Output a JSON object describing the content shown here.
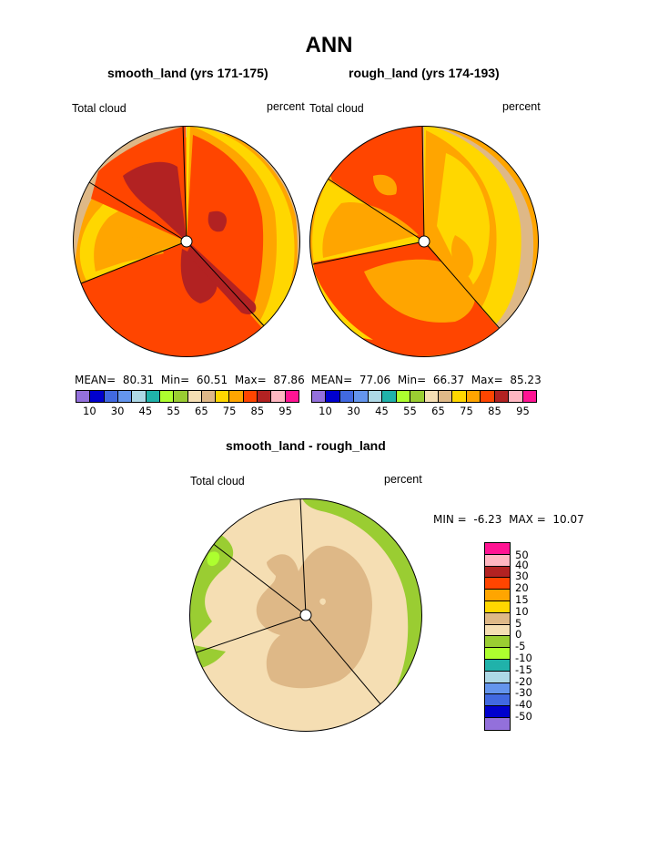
{
  "title": "ANN",
  "diff_title": "smooth_land - rough_land",
  "panels": [
    {
      "title": "smooth_land (yrs 171-175)",
      "left_label": "Total cloud",
      "right_label": "percent",
      "mean_label": "MEAN=",
      "mean": "80.31",
      "min_label": "Min=",
      "min": "60.51",
      "max_label": "Max=",
      "max": "87.86"
    },
    {
      "title": "rough_land (yrs 174-193)",
      "left_label": "Total cloud",
      "right_label": "percent",
      "mean_label": "MEAN=",
      "mean": "77.06",
      "min_label": "Min=",
      "min": "66.37",
      "max_label": "Max=",
      "max": "85.23"
    }
  ],
  "diff_panel": {
    "left_label": "Total cloud",
    "right_label": "percent",
    "min_label": "MIN =",
    "min": "-6.23",
    "max_label": "MAX =",
    "max": "10.07"
  },
  "chart_data": [
    {
      "type": "heatmap",
      "projection": "polar",
      "variable": "Total cloud",
      "units": "percent",
      "case": "smooth_land (yrs 171-175)",
      "mean": 80.31,
      "min": 60.51,
      "max": 87.86,
      "colorbar_ticks": [
        "10",
        "30",
        "45",
        "55",
        "65",
        "75",
        "85",
        "95"
      ],
      "colorbar_colors": [
        "#9370db",
        "#0000cd",
        "#4169e1",
        "#6495ed",
        "#add8e6",
        "#20b2aa",
        "#adff2f",
        "#9acd32",
        "#f5deb3",
        "#deb887",
        "#ffd700",
        "#ffa500",
        "#ff4500",
        "#b22222",
        "#ffb6c1",
        "#ff1493"
      ]
    },
    {
      "type": "heatmap",
      "projection": "polar",
      "variable": "Total cloud",
      "units": "percent",
      "case": "rough_land (yrs 174-193)",
      "mean": 77.06,
      "min": 66.37,
      "max": 85.23,
      "colorbar_ticks": [
        "10",
        "30",
        "45",
        "55",
        "65",
        "75",
        "85",
        "95"
      ],
      "colorbar_colors": [
        "#9370db",
        "#0000cd",
        "#4169e1",
        "#6495ed",
        "#add8e6",
        "#20b2aa",
        "#adff2f",
        "#9acd32",
        "#f5deb3",
        "#deb887",
        "#ffd700",
        "#ffa500",
        "#ff4500",
        "#b22222",
        "#ffb6c1",
        "#ff1493"
      ]
    },
    {
      "type": "heatmap",
      "projection": "polar",
      "variable": "Total cloud",
      "units": "percent",
      "case": "smooth_land - rough_land",
      "min": -6.23,
      "max": 10.07,
      "colorbar_ticks": [
        "50",
        "40",
        "30",
        "20",
        "15",
        "10",
        "5",
        "0",
        "-5",
        "-10",
        "-15",
        "-20",
        "-30",
        "-40",
        "-50"
      ],
      "colorbar_colors": [
        "#ff1493",
        "#ffb6c1",
        "#b22222",
        "#ff4500",
        "#ffa500",
        "#ffd700",
        "#deb887",
        "#f5deb3",
        "#9acd32",
        "#adff2f",
        "#20b2aa",
        "#add8e6",
        "#6495ed",
        "#4169e1",
        "#0000cd",
        "#9370db"
      ]
    }
  ]
}
